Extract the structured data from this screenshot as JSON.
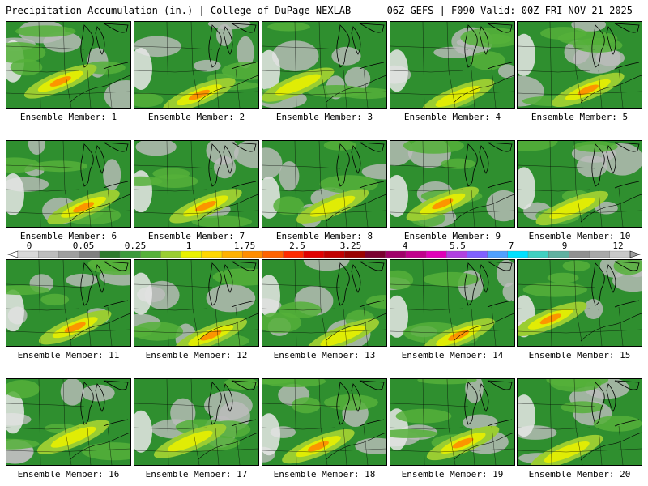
{
  "header": {
    "title_left": "Precipitation Accumulation (in.) | College of DuPage NEXLAB",
    "title_right": "06Z GEFS | F090 Valid: 00Z FRI NOV 21 2025"
  },
  "panels": [
    {
      "label": "Ensemble Member: 1"
    },
    {
      "label": "Ensemble Member: 2"
    },
    {
      "label": "Ensemble Member: 3"
    },
    {
      "label": "Ensemble Member: 4"
    },
    {
      "label": "Ensemble Member: 5"
    },
    {
      "label": "Ensemble Member: 6"
    },
    {
      "label": "Ensemble Member: 7"
    },
    {
      "label": "Ensemble Member: 8"
    },
    {
      "label": "Ensemble Member: 9"
    },
    {
      "label": "Ensemble Member: 10"
    },
    {
      "label": "Ensemble Member: 11"
    },
    {
      "label": "Ensemble Member: 12"
    },
    {
      "label": "Ensemble Member: 13"
    },
    {
      "label": "Ensemble Member: 14"
    },
    {
      "label": "Ensemble Member: 15"
    },
    {
      "label": "Ensemble Member: 16"
    },
    {
      "label": "Ensemble Member: 17"
    },
    {
      "label": "Ensemble Member: 18"
    },
    {
      "label": "Ensemble Member: 19"
    },
    {
      "label": "Ensemble Member: 20"
    }
  ],
  "colorbar": {
    "tick_labels": [
      "0",
      "0.05",
      "0.25",
      "1",
      "1.75",
      "2.5",
      "3.25",
      "4",
      "5.5",
      "7",
      "9",
      "12"
    ],
    "colors": [
      "#d9d9d9",
      "#bdbdbd",
      "#9e9e9e",
      "#7f7f7f",
      "#2d7a2d",
      "#3c9a3c",
      "#55b039",
      "#9acd32",
      "#e8f000",
      "#ffd700",
      "#ffb000",
      "#ff8c00",
      "#ff6200",
      "#ff2a00",
      "#e00000",
      "#c00000",
      "#9a0000",
      "#7a0030",
      "#a0006a",
      "#c0008c",
      "#e000b8",
      "#b040e0",
      "#8060ff",
      "#50a0ff",
      "#00e0ff",
      "#40d0c0",
      "#60b0a0",
      "#909090",
      "#a8a8a8",
      "#c8c8c8"
    ]
  }
}
